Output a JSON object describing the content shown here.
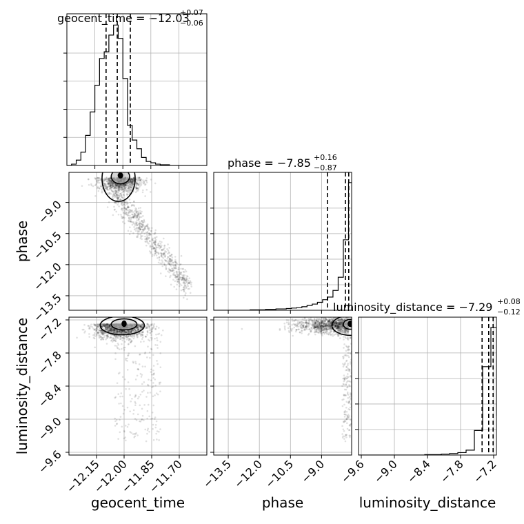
{
  "chart_data": {
    "type": "corner",
    "parameters": [
      "geocent_time",
      "phase",
      "luminosity_distance"
    ],
    "titles": [
      {
        "text": "geocent_time = −12.03",
        "plus": "+0.07",
        "minus": "−0.06"
      },
      {
        "text": "phase = −7.85",
        "plus": "+0.16",
        "minus": "−0.87"
      },
      {
        "text": "luminosity_distance = −7.29",
        "plus": "+0.08",
        "minus": "−0.12"
      }
    ],
    "axis_labels": [
      "geocent_time",
      "phase",
      "luminosity_distance"
    ],
    "ranges": [
      [
        -12.3,
        -11.55
      ],
      [
        -14.2,
        -7.55
      ],
      [
        -9.65,
        -7.15
      ]
    ],
    "ticks": [
      {
        "values": [
          -12.15,
          -12.0,
          -11.85,
          -11.7
        ],
        "labels": [
          "−12.15",
          "−12.00",
          "−11.85",
          "−11.70"
        ]
      },
      {
        "values": [
          -13.5,
          -12.0,
          -10.5,
          -9.0
        ],
        "labels": [
          "−13.5",
          "−12.0",
          "−10.5",
          "−9.0"
        ]
      },
      {
        "values": [
          -9.6,
          -9.0,
          -8.4,
          -7.8,
          -7.2
        ],
        "labels": [
          "−9.6",
          "−9.0",
          "−8.4",
          "−7.8",
          "−7.2"
        ]
      }
    ],
    "quantiles": [
      [
        -12.09,
        -12.03,
        -11.96
      ],
      [
        -8.72,
        -7.85,
        -7.69
      ],
      [
        -7.41,
        -7.29,
        -7.21
      ]
    ],
    "histograms": [
      {
        "bins": [
          -12.3,
          -12.275,
          -12.25,
          -12.225,
          -12.2,
          -12.175,
          -12.15,
          -12.125,
          -12.1,
          -12.075,
          -12.05,
          -12.025,
          -12.0,
          -11.975,
          -11.95,
          -11.925,
          -11.9,
          -11.875,
          -11.85,
          -11.825,
          -11.8,
          -11.775,
          -11.75,
          -11.725,
          -11.7,
          -11.675,
          -11.65,
          -11.625,
          -11.6,
          -11.575,
          -11.55
        ],
        "counts": [
          0,
          2,
          8,
          20,
          45,
          80,
          120,
          160,
          170,
          195,
          210,
          190,
          130,
          60,
          38,
          25,
          12,
          6,
          4,
          2,
          1,
          1,
          0,
          0,
          0,
          0,
          0,
          0,
          0,
          0
        ]
      },
      {
        "bins": [
          -14.2,
          -13.95,
          -13.7,
          -13.45,
          -13.2,
          -12.95,
          -12.7,
          -12.45,
          -12.2,
          -11.95,
          -11.7,
          -11.45,
          -11.2,
          -10.95,
          -10.7,
          -10.45,
          -10.2,
          -9.95,
          -9.7,
          -9.45,
          -9.2,
          -8.95,
          -8.7,
          -8.45,
          -8.2,
          -7.95,
          -7.7,
          -7.55
        ],
        "counts": [
          0,
          0,
          0,
          0,
          0,
          0,
          0,
          1,
          1,
          1,
          2,
          2,
          3,
          3,
          4,
          5,
          6,
          8,
          11,
          14,
          18,
          24,
          30,
          45,
          75,
          160,
          290
        ]
      },
      {
        "bins": [
          -9.65,
          -9.5,
          -9.35,
          -9.2,
          -9.05,
          -8.9,
          -8.75,
          -8.6,
          -8.45,
          -8.3,
          -8.15,
          -8.0,
          -7.85,
          -7.7,
          -7.55,
          -7.4,
          -7.25,
          -7.15
        ],
        "counts": [
          0,
          0,
          0,
          0,
          0,
          0,
          0,
          0,
          1,
          1,
          2,
          3,
          5,
          10,
          50,
          180,
          260,
          80
        ]
      }
    ]
  }
}
